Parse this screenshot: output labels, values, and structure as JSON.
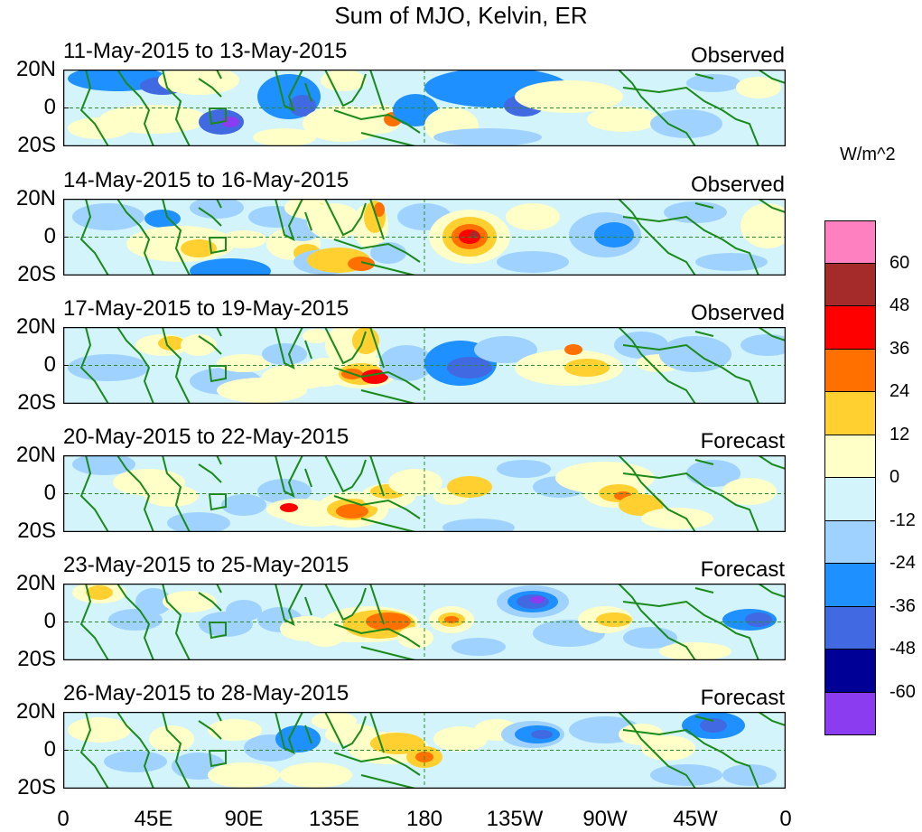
{
  "title": "Sum of MJO, Kelvin, ER",
  "panels": [
    {
      "date": "11-May-2015 to 13-May-2015",
      "kind": "Observed"
    },
    {
      "date": "14-May-2015 to 16-May-2015",
      "kind": "Observed"
    },
    {
      "date": "17-May-2015 to 19-May-2015",
      "kind": "Observed"
    },
    {
      "date": "20-May-2015 to 22-May-2015",
      "kind": "Forecast"
    },
    {
      "date": "23-May-2015 to 25-May-2015",
      "kind": "Forecast"
    },
    {
      "date": "26-May-2015 to 28-May-2015",
      "kind": "Forecast"
    }
  ],
  "lat_labels": [
    "20N",
    "0",
    "20S"
  ],
  "lon_labels": [
    "0",
    "45E",
    "90E",
    "135E",
    "180",
    "135W",
    "90W",
    "45W",
    "0"
  ],
  "colorbar": {
    "unit": "W/m^2",
    "ticks": [
      "60",
      "48",
      "36",
      "24",
      "12",
      "0",
      "-12",
      "-24",
      "-36",
      "-48",
      "-60"
    ],
    "colors": [
      "#ff80c0",
      "#a52a2a",
      "#ff0000",
      "#ff7000",
      "#ffd030",
      "#ffffc8",
      "#d2f4fa",
      "#a0d2ff",
      "#1e90ff",
      "#4169e1",
      "#000096",
      "#8c3cf0"
    ]
  },
  "colors": {
    "land": "#1a8a1a",
    "guide": "#2f8a2f"
  }
}
